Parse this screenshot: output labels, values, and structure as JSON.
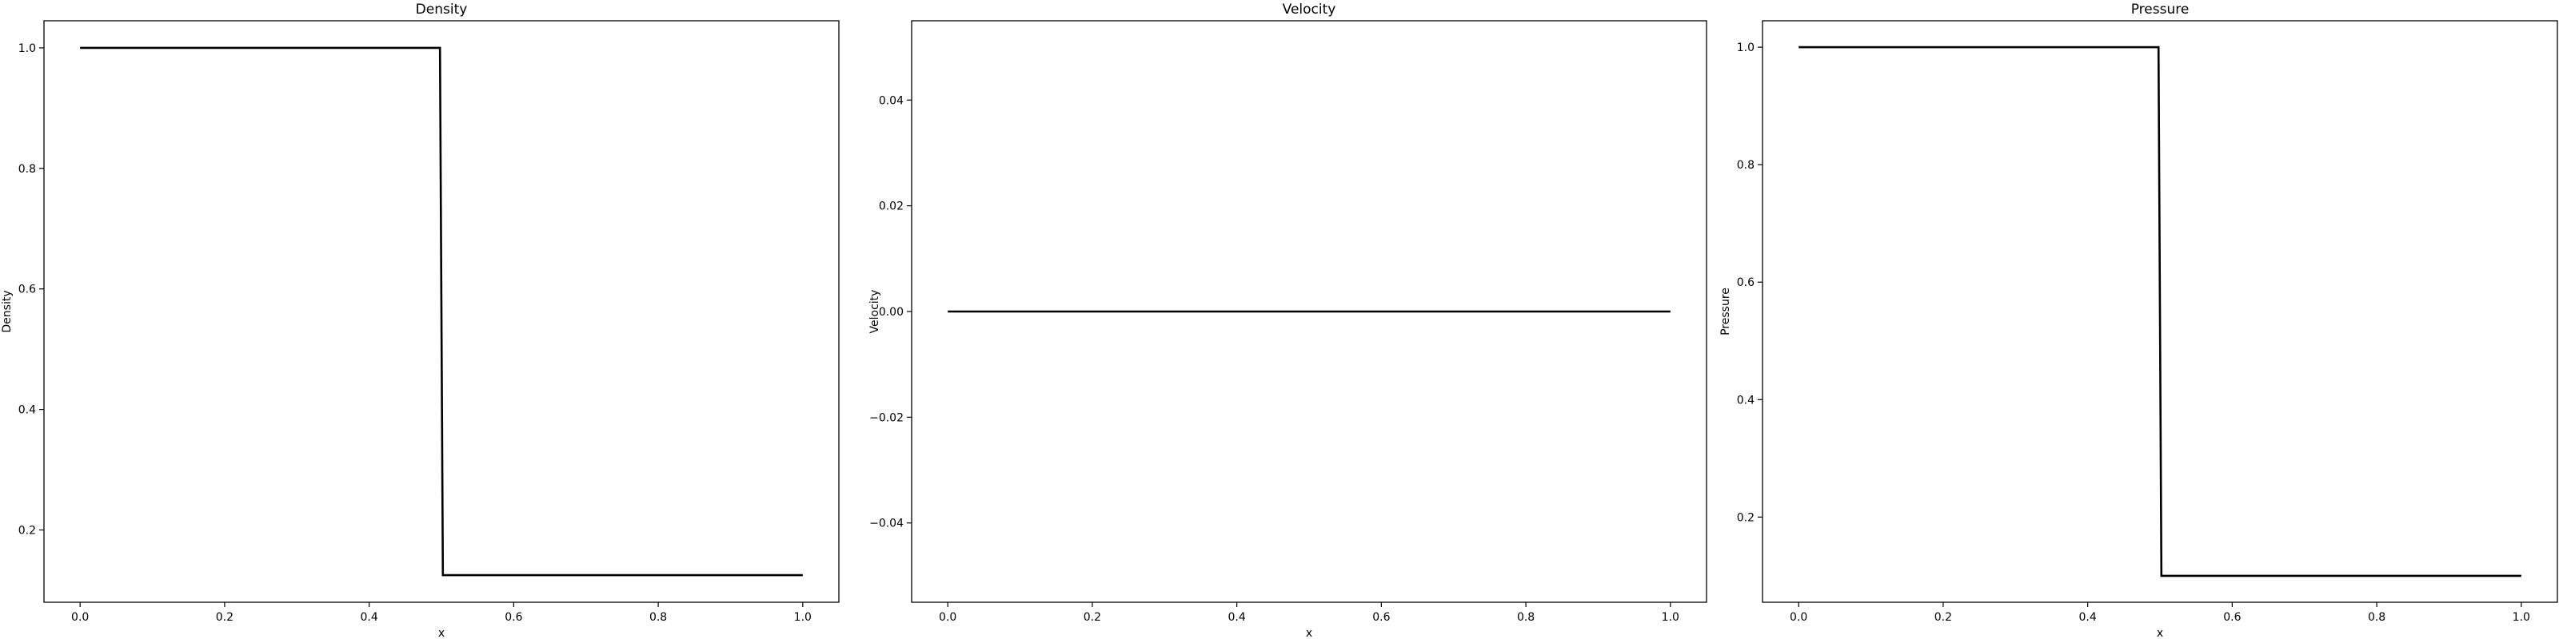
{
  "chart_data": [
    {
      "type": "line",
      "title": "Density",
      "xlabel": "x",
      "ylabel": "Density",
      "xlim": [
        -0.05,
        1.05
      ],
      "ylim": [
        0.08,
        1.045
      ],
      "xticks": [
        0.0,
        0.2,
        0.4,
        0.6,
        0.8,
        1.0
      ],
      "xtick_labels": [
        "0.0",
        "0.2",
        "0.4",
        "0.6",
        "0.8",
        "1.0"
      ],
      "yticks": [
        0.2,
        0.4,
        0.6,
        0.8,
        1.0
      ],
      "ytick_labels": [
        "0.2",
        "0.4",
        "0.6",
        "0.8",
        "1.0"
      ],
      "grid": false,
      "series": [
        {
          "color": "#000000",
          "x": [
            0.0,
            0.498,
            0.502,
            1.0
          ],
          "y": [
            1.0,
            1.0,
            0.125,
            0.125
          ]
        }
      ]
    },
    {
      "type": "line",
      "title": "Velocity",
      "xlabel": "x",
      "ylabel": "Velocity",
      "xlim": [
        -0.05,
        1.05
      ],
      "ylim": [
        -0.055,
        0.055
      ],
      "xticks": [
        0.0,
        0.2,
        0.4,
        0.6,
        0.8,
        1.0
      ],
      "xtick_labels": [
        "0.0",
        "0.2",
        "0.4",
        "0.6",
        "0.8",
        "1.0"
      ],
      "yticks": [
        -0.04,
        -0.02,
        0.0,
        0.02,
        0.04
      ],
      "ytick_labels": [
        "−0.04",
        "−0.02",
        "0.00",
        "0.02",
        "0.04"
      ],
      "grid": false,
      "series": [
        {
          "color": "#000000",
          "x": [
            0.0,
            1.0
          ],
          "y": [
            0.0,
            0.0
          ]
        }
      ]
    },
    {
      "type": "line",
      "title": "Pressure",
      "xlabel": "x",
      "ylabel": "Pressure",
      "xlim": [
        -0.05,
        1.05
      ],
      "ylim": [
        0.055,
        1.045
      ],
      "xticks": [
        0.0,
        0.2,
        0.4,
        0.6,
        0.8,
        1.0
      ],
      "xtick_labels": [
        "0.0",
        "0.2",
        "0.4",
        "0.6",
        "0.8",
        "1.0"
      ],
      "yticks": [
        0.2,
        0.4,
        0.6,
        0.8,
        1.0
      ],
      "ytick_labels": [
        "0.2",
        "0.4",
        "0.6",
        "0.8",
        "1.0"
      ],
      "grid": false,
      "series": [
        {
          "color": "#000000",
          "x": [
            0.0,
            0.498,
            0.502,
            1.0
          ],
          "y": [
            1.0,
            1.0,
            0.1,
            0.1
          ]
        }
      ]
    }
  ]
}
